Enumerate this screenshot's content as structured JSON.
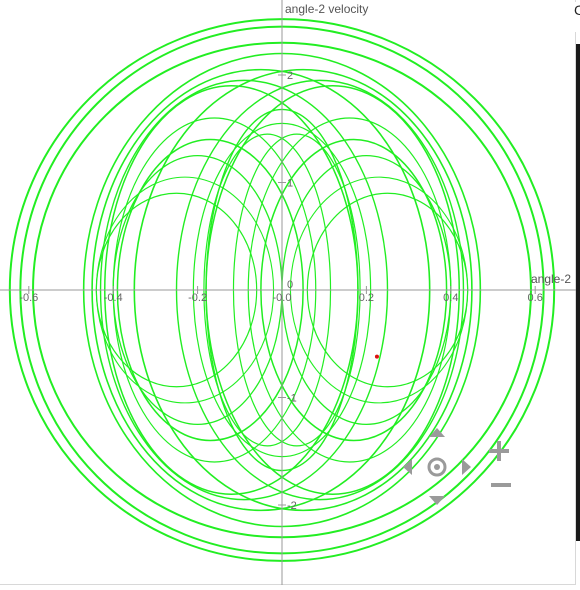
{
  "plot": {
    "x_axis_title": "angle-2",
    "y_axis_title": "angle-2 velocity",
    "x_ticks": [
      {
        "value": -0.6,
        "label": "-0.6"
      },
      {
        "value": -0.4,
        "label": "-0.4"
      },
      {
        "value": -0.2,
        "label": "-0.2"
      },
      {
        "value": 0.0,
        "label": "-0.0"
      },
      {
        "value": 0.2,
        "label": "0.2"
      },
      {
        "value": 0.4,
        "label": "0.4"
      },
      {
        "value": 0.6,
        "label": "0.6"
      }
    ],
    "y_ticks": [
      {
        "value": 2,
        "label": "2"
      },
      {
        "value": 1,
        "label": "1"
      },
      {
        "value": 0,
        "label": "0"
      },
      {
        "value": -1,
        "label": "-1"
      },
      {
        "value": -2,
        "label": "-2"
      }
    ],
    "trajectory_color": "#22ee22",
    "current_point": {
      "x": 0.225,
      "y": -0.62
    },
    "current_point_color": "#dd1111"
  },
  "controls": {
    "pan_up_icon": "triangle-up",
    "pan_down_icon": "triangle-down",
    "pan_left_icon": "triangle-left",
    "pan_right_icon": "triangle-right",
    "reset_view_icon": "target",
    "zoom_in_icon": "plus",
    "zoom_out_icon": "minus",
    "control_color": "#9a9a9a"
  },
  "corner_glyph": "C"
}
